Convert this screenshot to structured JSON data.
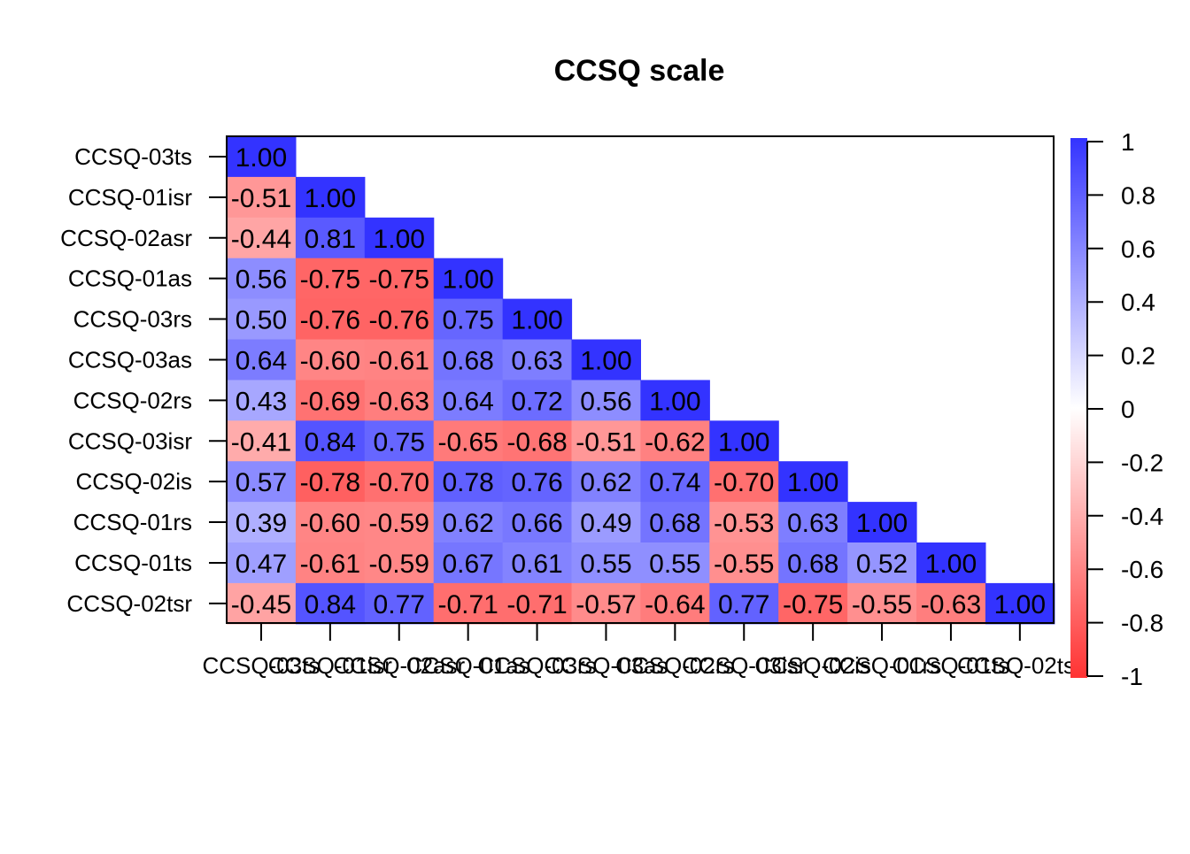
{
  "chart_data": {
    "type": "heatmap",
    "title": "CCSQ scale",
    "row_labels": [
      "CCSQ-03ts",
      "CCSQ-01isr",
      "CCSQ-02asr",
      "CCSQ-01as",
      "CCSQ-03rs",
      "CCSQ-03as",
      "CCSQ-02rs",
      "CCSQ-03isr",
      "CCSQ-02is",
      "CCSQ-01rs",
      "CCSQ-01ts",
      "CCSQ-02tsr"
    ],
    "col_labels": [
      "CCSQ-03ts",
      "CCSQ-01isr",
      "CCSQ-02asr",
      "CCSQ-01as",
      "CCSQ-03rs",
      "CCSQ-03as",
      "CCSQ-02rs",
      "CCSQ-03isr",
      "CCSQ-02is",
      "CCSQ-01rs",
      "CCSQ-01ts",
      "CCSQ-02tsr"
    ],
    "values": [
      [
        1.0
      ],
      [
        -0.51,
        1.0
      ],
      [
        -0.44,
        0.81,
        1.0
      ],
      [
        0.56,
        -0.75,
        -0.75,
        1.0
      ],
      [
        0.5,
        -0.76,
        -0.76,
        0.75,
        1.0
      ],
      [
        0.64,
        -0.6,
        -0.61,
        0.68,
        0.63,
        1.0
      ],
      [
        0.43,
        -0.69,
        -0.63,
        0.64,
        0.72,
        0.56,
        1.0
      ],
      [
        -0.41,
        0.84,
        0.75,
        -0.65,
        -0.68,
        -0.51,
        -0.62,
        1.0
      ],
      [
        0.57,
        -0.78,
        -0.7,
        0.78,
        0.76,
        0.62,
        0.74,
        -0.7,
        1.0
      ],
      [
        0.39,
        -0.6,
        -0.59,
        0.62,
        0.66,
        0.49,
        0.68,
        -0.53,
        0.63,
        1.0
      ],
      [
        0.47,
        -0.61,
        -0.59,
        0.67,
        0.61,
        0.55,
        0.55,
        -0.55,
        0.68,
        0.52,
        1.0
      ],
      [
        -0.45,
        0.84,
        0.77,
        -0.71,
        -0.71,
        -0.57,
        -0.64,
        0.77,
        -0.75,
        -0.55,
        -0.63,
        1.0
      ]
    ],
    "value_format": "2 decimals",
    "colorbar": {
      "range": [
        -1,
        1
      ],
      "ticks": [
        "1",
        "0.8",
        "0.6",
        "0.4",
        "0.2",
        "0",
        "-0.2",
        "-0.4",
        "-0.6",
        "-0.8",
        "-1"
      ],
      "low_color": "#ff3333",
      "mid_color": "#ffffff",
      "high_color": "#3333ff"
    },
    "layout": "lower-triangle",
    "grid": false
  }
}
